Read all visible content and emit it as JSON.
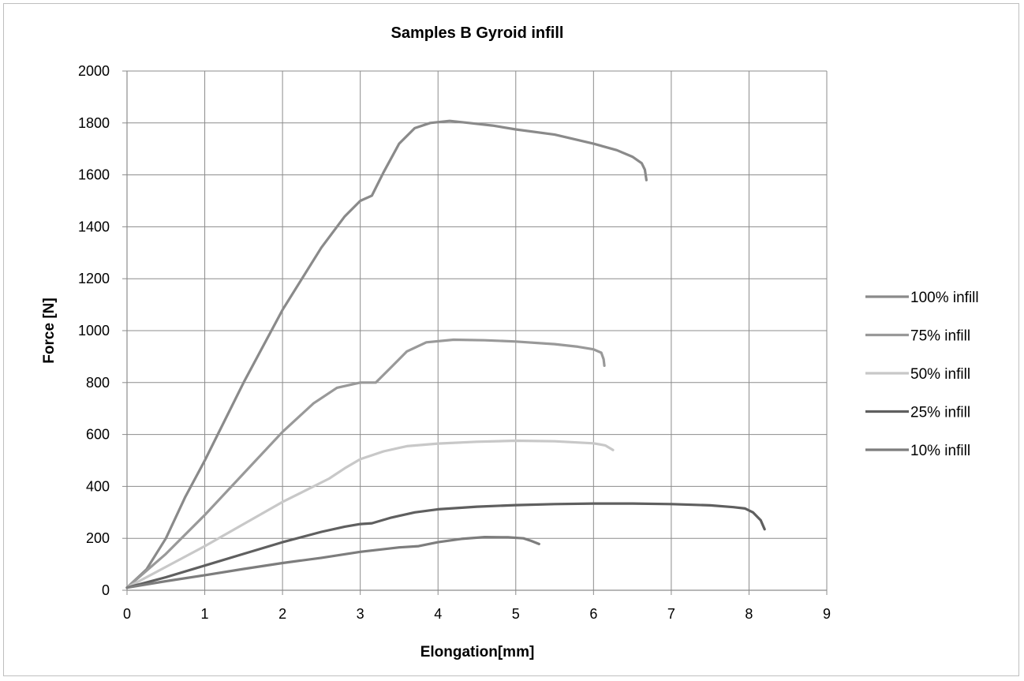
{
  "chart_data": {
    "type": "line",
    "title": "Samples B Gyroid infill",
    "xlabel": "Elongation[mm]",
    "ylabel": "Force [N]",
    "xlim": [
      0,
      9
    ],
    "ylim": [
      0,
      2000
    ],
    "x_ticks": [
      "0",
      "1",
      "2",
      "3",
      "4",
      "5",
      "6",
      "7",
      "8",
      "9"
    ],
    "y_ticks": [
      "0",
      "200",
      "400",
      "600",
      "800",
      "1000",
      "1200",
      "1400",
      "1600",
      "1800",
      "2000"
    ],
    "grid": true,
    "legend_position": "right",
    "series": [
      {
        "name": "100% infill",
        "color": "#8a8a8a",
        "points": [
          [
            0,
            10
          ],
          [
            0.25,
            80
          ],
          [
            0.5,
            200
          ],
          [
            0.75,
            360
          ],
          [
            1,
            500
          ],
          [
            1.5,
            800
          ],
          [
            2,
            1080
          ],
          [
            2.5,
            1320
          ],
          [
            2.8,
            1440
          ],
          [
            3.0,
            1500
          ],
          [
            3.15,
            1520
          ],
          [
            3.3,
            1610
          ],
          [
            3.5,
            1720
          ],
          [
            3.7,
            1780
          ],
          [
            3.9,
            1800
          ],
          [
            4.15,
            1808
          ],
          [
            4.4,
            1800
          ],
          [
            4.7,
            1790
          ],
          [
            5.0,
            1775
          ],
          [
            5.5,
            1755
          ],
          [
            6.0,
            1720
          ],
          [
            6.3,
            1695
          ],
          [
            6.5,
            1670
          ],
          [
            6.62,
            1645
          ],
          [
            6.66,
            1620
          ],
          [
            6.68,
            1580
          ]
        ]
      },
      {
        "name": "75% infill",
        "color": "#999999",
        "points": [
          [
            0,
            10
          ],
          [
            0.5,
            140
          ],
          [
            1,
            290
          ],
          [
            1.5,
            450
          ],
          [
            2,
            610
          ],
          [
            2.4,
            720
          ],
          [
            2.7,
            780
          ],
          [
            3.0,
            800
          ],
          [
            3.2,
            800
          ],
          [
            3.4,
            860
          ],
          [
            3.6,
            920
          ],
          [
            3.85,
            955
          ],
          [
            4.2,
            965
          ],
          [
            4.6,
            963
          ],
          [
            5.0,
            958
          ],
          [
            5.5,
            948
          ],
          [
            5.8,
            938
          ],
          [
            6.0,
            928
          ],
          [
            6.1,
            915
          ],
          [
            6.13,
            890
          ],
          [
            6.14,
            865
          ]
        ]
      },
      {
        "name": "50% infill",
        "color": "#c8c8c8",
        "points": [
          [
            0,
            10
          ],
          [
            0.5,
            90
          ],
          [
            1,
            170
          ],
          [
            1.5,
            255
          ],
          [
            2,
            340
          ],
          [
            2.3,
            385
          ],
          [
            2.6,
            430
          ],
          [
            2.8,
            470
          ],
          [
            3.0,
            505
          ],
          [
            3.3,
            535
          ],
          [
            3.6,
            555
          ],
          [
            4.0,
            565
          ],
          [
            4.5,
            572
          ],
          [
            5.0,
            576
          ],
          [
            5.5,
            574
          ],
          [
            6.0,
            566
          ],
          [
            6.15,
            558
          ],
          [
            6.25,
            540
          ]
        ]
      },
      {
        "name": "25% infill",
        "color": "#5f5f5f",
        "points": [
          [
            0,
            10
          ],
          [
            0.5,
            50
          ],
          [
            1,
            95
          ],
          [
            1.5,
            140
          ],
          [
            2,
            185
          ],
          [
            2.5,
            225
          ],
          [
            2.8,
            245
          ],
          [
            3.0,
            255
          ],
          [
            3.15,
            258
          ],
          [
            3.4,
            280
          ],
          [
            3.7,
            300
          ],
          [
            4.0,
            312
          ],
          [
            4.5,
            322
          ],
          [
            5.0,
            328
          ],
          [
            5.5,
            332
          ],
          [
            6.0,
            334
          ],
          [
            6.5,
            334
          ],
          [
            7.0,
            332
          ],
          [
            7.5,
            327
          ],
          [
            7.8,
            320
          ],
          [
            7.95,
            315
          ],
          [
            8.05,
            300
          ],
          [
            8.15,
            270
          ],
          [
            8.2,
            235
          ]
        ]
      },
      {
        "name": "10% infill",
        "color": "#7d7d7d",
        "points": [
          [
            0,
            10
          ],
          [
            0.5,
            35
          ],
          [
            1,
            58
          ],
          [
            1.5,
            82
          ],
          [
            2,
            105
          ],
          [
            2.5,
            125
          ],
          [
            3.0,
            148
          ],
          [
            3.5,
            165
          ],
          [
            3.75,
            170
          ],
          [
            4.0,
            185
          ],
          [
            4.3,
            198
          ],
          [
            4.6,
            205
          ],
          [
            4.9,
            204
          ],
          [
            5.1,
            200
          ],
          [
            5.2,
            190
          ],
          [
            5.3,
            178
          ]
        ]
      }
    ]
  }
}
